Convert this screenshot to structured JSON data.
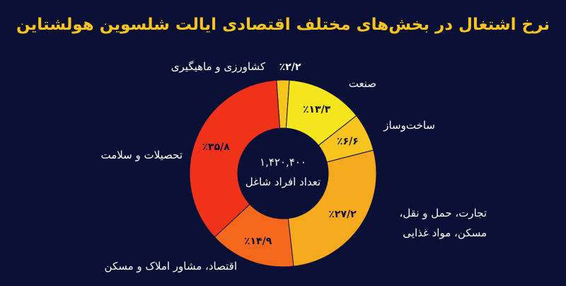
{
  "chart_data": {
    "type": "donut",
    "title": "نرخ اشتغال در بخش‌های مختلف اقتصادی ایالت شلسوین هولشتاین",
    "center_value": "۱,۴۲۰,۴۰۰",
    "center_label": "تعداد افراد شاغل",
    "categories": [
      "کشاورزی و ماهیگیری",
      "صنعت",
      "ساخت‌وساز",
      "تجارت، حمل و نقل،\nمسکن، مواد غذایی",
      "اقتصاد، مشاور املاک و مسکن",
      "تحصیلات و سلامت"
    ],
    "values": [
      2.2,
      13.3,
      6.6,
      27.2,
      14.9,
      35.8
    ],
    "value_labels": [
      "٪۲/۲",
      "٪۱۳/۳",
      "٪۶/۶",
      "٪۲۷/۲",
      "٪۱۴/۹",
      "٪۳۵/۸"
    ],
    "colors": [
      "#f7c51e",
      "#f4e51c",
      "#f7c51e",
      "#f5a91d",
      "#f5681c",
      "#f0321b"
    ]
  }
}
